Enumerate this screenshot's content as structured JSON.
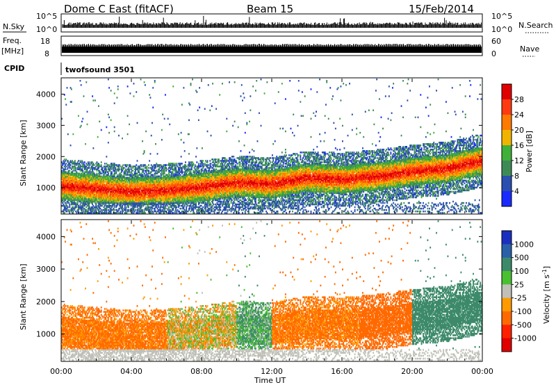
{
  "header": {
    "title": "Dome C East (fitACF)",
    "beam": "Beam 15",
    "date": "15/Feb/2014"
  },
  "strips": {
    "nsky_label": "N.Sky",
    "nsky_ticks": [
      "10^5",
      "10^0"
    ],
    "nsearch_label": "N.Search",
    "nsearch_ticks": [
      "10^5",
      "10^0"
    ],
    "freq_label": "Freq.",
    "freq_unit": "[MHz]",
    "freq_ticks": [
      "18",
      "8"
    ],
    "nave_label": "Nave",
    "nave_ticks": [
      "60",
      "0"
    ],
    "cpid_label": "CPID",
    "cpid_value": "twofsound 3501"
  },
  "axes": {
    "ylabel": "Slant Range [km]",
    "xlabel": "Time UT",
    "xticks": [
      "00:00",
      "04:00",
      "08:00",
      "12:00",
      "16:00",
      "20:00",
      "00:00"
    ],
    "yticks": [
      "1000",
      "2000",
      "3000",
      "4000"
    ]
  },
  "power_bar": {
    "label": "Power [dB]",
    "ticks": [
      "4",
      "8",
      "12",
      "16",
      "20",
      "24",
      "28"
    ],
    "colors": [
      "#1a2bff",
      "#2a4fb0",
      "#3e8a56",
      "#3fb03a",
      "#f0b400",
      "#ff7a00",
      "#ff3a10",
      "#e00000"
    ]
  },
  "velocity_bar": {
    "label": "Velocity [m s",
    "label_sup": "-1",
    "label_end": "]",
    "ticks": [
      "1000",
      "500",
      "100",
      "25",
      "-25",
      "-100",
      "-500",
      "-1000"
    ],
    "colors": [
      "#1a2fc0",
      "#2a60a8",
      "#3d8a6a",
      "#48c030",
      "#c0c0b8",
      "#ff9a00",
      "#ff6a00",
      "#ff2000",
      "#e00000"
    ]
  },
  "chart_data": {
    "type": "heatmap",
    "x": {
      "label": "Time UT",
      "range_hours": [
        0,
        24
      ],
      "ticks": [
        "00:00",
        "04:00",
        "08:00",
        "12:00",
        "16:00",
        "20:00",
        "00:00"
      ]
    },
    "y": {
      "label": "Slant Range [km]",
      "range_km": [
        180,
        4500
      ],
      "ticks": [
        1000,
        2000,
        3000,
        4000
      ]
    },
    "panels": [
      {
        "name": "Power [dB]",
        "scale": [
          0,
          32
        ],
        "band_center_km": [
          [
            0,
            1050
          ],
          [
            2,
            950
          ],
          [
            4,
            850
          ],
          [
            6,
            900
          ],
          [
            8,
            1000
          ],
          [
            10,
            1150
          ],
          [
            12,
            1100
          ],
          [
            14,
            1300
          ],
          [
            16,
            1250
          ],
          [
            18,
            1350
          ],
          [
            20,
            1500
          ],
          [
            22,
            1600
          ],
          [
            24,
            1850
          ]
        ],
        "band_halfwidth_km": 450
      },
      {
        "name": "Velocity [m s^-1]",
        "scale": [
          -1000,
          1000
        ],
        "dominant_by_time": [
          {
            "t": [
              0,
              6
            ],
            "value": -150
          },
          {
            "t": [
              6,
              10
            ],
            "value": -25
          },
          {
            "t": [
              10,
              12
            ],
            "value": 100
          },
          {
            "t": [
              12,
              17
            ],
            "value": -150
          },
          {
            "t": [
              17,
              20
            ],
            "value": -250
          },
          {
            "t": [
              20,
              24
            ],
            "value": 300
          }
        ]
      }
    ]
  }
}
